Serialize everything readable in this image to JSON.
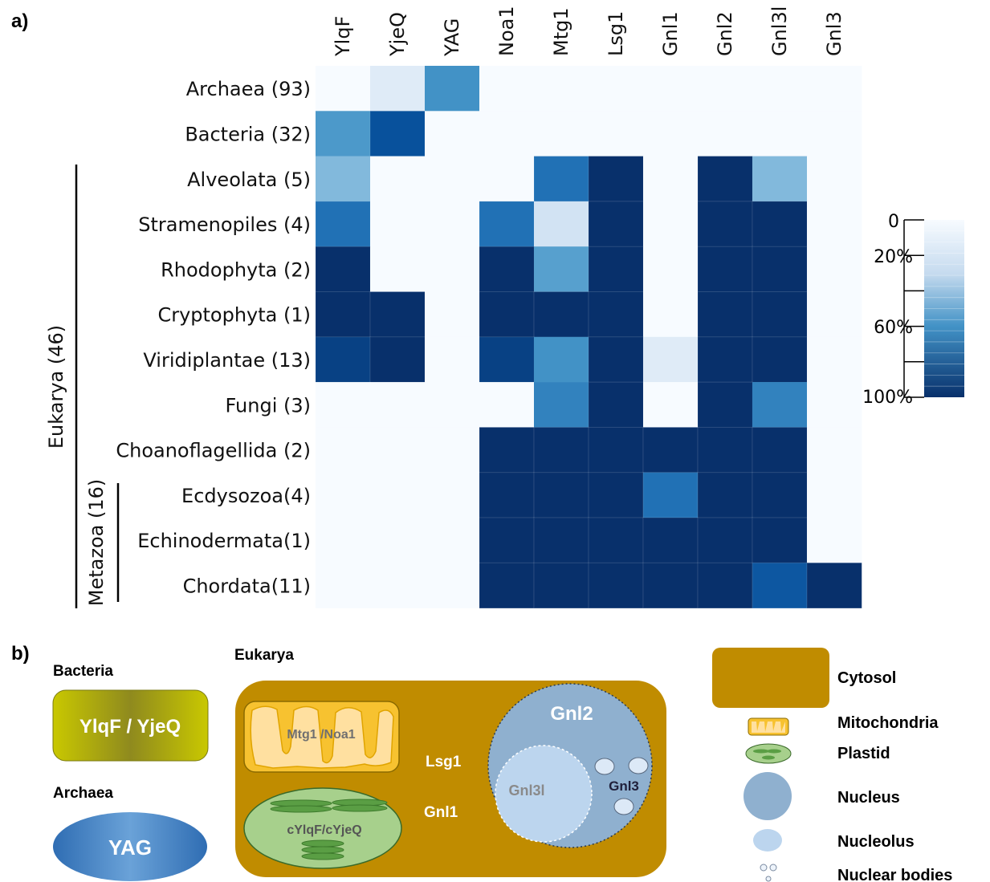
{
  "panel_a": {
    "label": "a)"
  },
  "panel_b": {
    "label": "b)"
  },
  "chart_data": {
    "type": "heatmap",
    "columns": [
      "YlqF",
      "YjeQ",
      "YAG",
      "Noa1",
      "Mtg1",
      "Lsg1",
      "Gnl1",
      "Gnl2",
      "Gnl3l",
      "Gnl3"
    ],
    "rows": [
      "Archaea (93)",
      "Bacteria (32)",
      "Alveolata (5)",
      "Stramenopiles (4)",
      "Rhodophyta (2)",
      "Cryptophyta (1)",
      "Viridiplantae (13)",
      "Fungi (3)",
      "Choanoflagellida (2)",
      "Ecdysozoa(4)",
      "Echinodermata(1)",
      "Chordata(11)"
    ],
    "values": [
      [
        0,
        10,
        60,
        0,
        0,
        0,
        0,
        0,
        0,
        0
      ],
      [
        55,
        90,
        0,
        0,
        0,
        0,
        0,
        0,
        0,
        0
      ],
      [
        35,
        0,
        0,
        0,
        80,
        100,
        0,
        100,
        35,
        0
      ],
      [
        80,
        0,
        0,
        80,
        15,
        100,
        0,
        100,
        100,
        0
      ],
      [
        100,
        0,
        0,
        100,
        50,
        100,
        0,
        100,
        100,
        0
      ],
      [
        100,
        100,
        0,
        100,
        100,
        100,
        0,
        100,
        100,
        0
      ],
      [
        95,
        100,
        0,
        95,
        60,
        100,
        10,
        100,
        100,
        0
      ],
      [
        0,
        0,
        0,
        0,
        70,
        100,
        0,
        100,
        70,
        0
      ],
      [
        0,
        0,
        0,
        100,
        100,
        100,
        100,
        100,
        100,
        0
      ],
      [
        0,
        0,
        0,
        100,
        100,
        100,
        80,
        100,
        100,
        0
      ],
      [
        0,
        0,
        0,
        100,
        100,
        100,
        100,
        100,
        100,
        0
      ],
      [
        0,
        0,
        0,
        100,
        100,
        100,
        100,
        100,
        88,
        100
      ]
    ],
    "range": [
      0,
      100
    ],
    "colorbar": {
      "tick_labels": [
        "0",
        "20%",
        "60%",
        "100%"
      ],
      "low_color": "#f7fbff",
      "high_color": "#08306b"
    },
    "groups": [
      {
        "label": "Eukarya (46)"
      },
      {
        "label": "Metazoa (16)"
      }
    ]
  },
  "diagram": {
    "bacteria_title": "Bacteria",
    "bacteria_label": "YlqF / YjeQ",
    "archaea_title": "Archaea",
    "archaea_label": "YAG",
    "eukarya_title": "Eukarya",
    "mito_label": "Mtg1 /Noa1",
    "plastid_label": "cYlqF/cYjeQ",
    "lsg1_label": "Lsg1",
    "gnl1_label": "Gnl1",
    "gnl2_label": "Gnl2",
    "gnl3l_label": "Gnl3l",
    "gnl3_label": "Gnl3",
    "colors": {
      "cytosol": "#c08c00",
      "mito": "#f7c230",
      "plastid": "#a7d08c",
      "nucleus": "#8fb0cf",
      "nucleolus": "#bcd5ee",
      "bacteria": "#c9c800",
      "archaea": "#3a7cc0"
    }
  },
  "legend": {
    "items": [
      {
        "label": "Cytosol",
        "icon": "cytosol-swatch"
      },
      {
        "label": "Mitochondria",
        "icon": "mitochondria-icon"
      },
      {
        "label": "Plastid",
        "icon": "plastid-icon"
      },
      {
        "label": "Nucleus",
        "icon": "nucleus-icon"
      },
      {
        "label": "Nucleolus",
        "icon": "nucleolus-icon"
      },
      {
        "label": "Nuclear bodies",
        "icon": "nuclear-bodies-icon"
      }
    ]
  }
}
